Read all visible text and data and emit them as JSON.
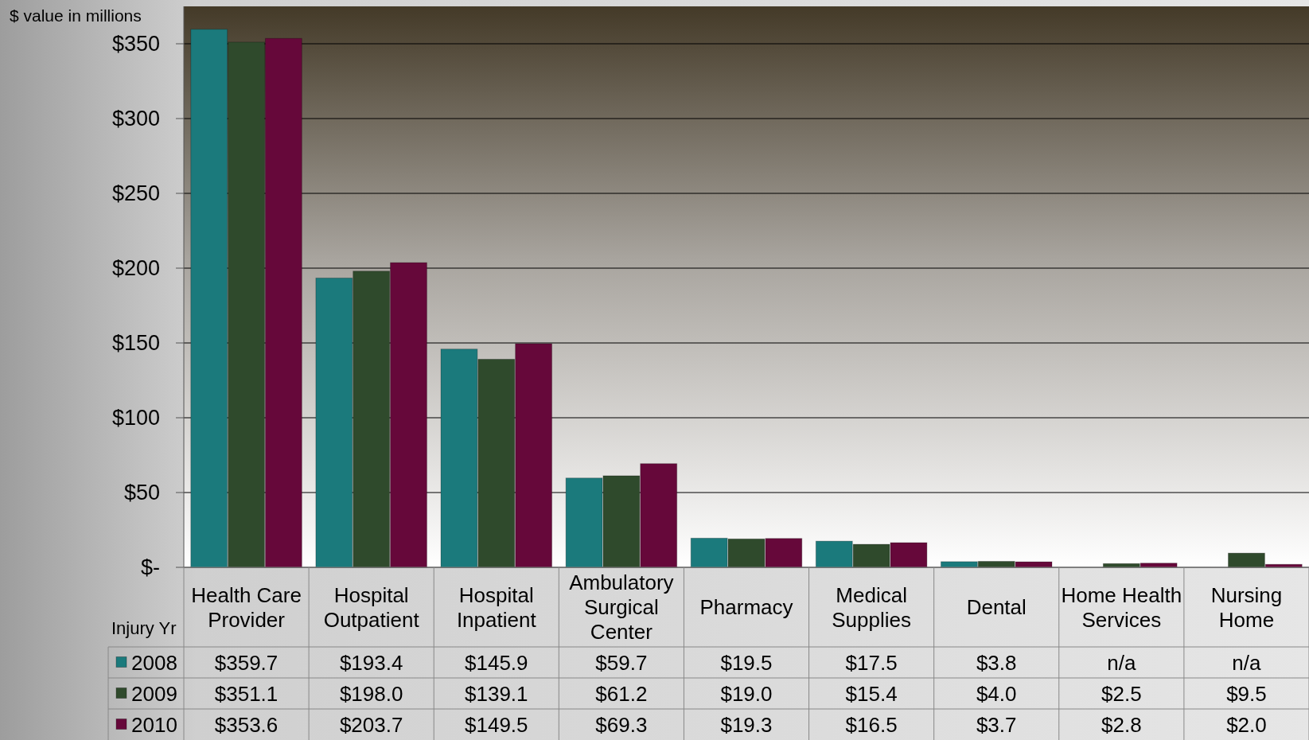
{
  "chart_data": {
    "type": "bar",
    "ylabel": "$ value in millions",
    "legend_title": "Injury Yr",
    "categories": [
      "Health Care Provider",
      "Hospital Outpatient",
      "Hospital Inpatient",
      "Ambulatory Surgical Center",
      "Pharmacy",
      "Medical Supplies",
      "Dental",
      "Home Health Services",
      "Nursing Home"
    ],
    "series": [
      {
        "name": "2008",
        "color": "#1b7a7c",
        "values": [
          359.7,
          193.4,
          145.9,
          59.7,
          19.5,
          17.5,
          3.8,
          null,
          null
        ],
        "value_labels": [
          "$359.7",
          "$193.4",
          "$145.9",
          "$59.7",
          "$19.5",
          "$17.5",
          "$3.8",
          "n/a",
          "n/a"
        ]
      },
      {
        "name": "2009",
        "color": "#2f4a2c",
        "values": [
          351.1,
          198.0,
          139.1,
          61.2,
          19.0,
          15.4,
          4.0,
          2.5,
          9.5
        ],
        "value_labels": [
          "$351.1",
          "$198.0",
          "$139.1",
          "$61.2",
          "$19.0",
          "$15.4",
          "$4.0",
          "$2.5",
          "$9.5"
        ]
      },
      {
        "name": "2010",
        "color": "#66083a",
        "values": [
          353.6,
          203.7,
          149.5,
          69.3,
          19.3,
          16.5,
          3.7,
          2.8,
          2.0
        ],
        "value_labels": [
          "$353.6",
          "$203.7",
          "$149.5",
          "$69.3",
          "$19.3",
          "$16.5",
          "$3.7",
          "$2.8",
          "$2.0"
        ]
      }
    ],
    "ylim": [
      0,
      375
    ],
    "yticks": [
      {
        "value": 0,
        "label": "$-"
      },
      {
        "value": 50,
        "label": "$50"
      },
      {
        "value": 100,
        "label": "$100"
      },
      {
        "value": 150,
        "label": "$150"
      },
      {
        "value": 200,
        "label": "$200"
      },
      {
        "value": 250,
        "label": "$250"
      },
      {
        "value": 300,
        "label": "$300"
      },
      {
        "value": 350,
        "label": "$350"
      }
    ],
    "grid": "y",
    "legend": "bottom"
  }
}
